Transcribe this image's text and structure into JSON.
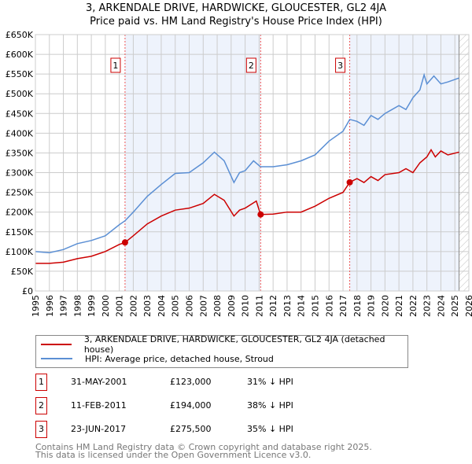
{
  "chart_data": {
    "type": "line",
    "title": "3, ARKENDALE DRIVE, HARDWICKE, GLOUCESTER, GL2 4JA",
    "subtitle": "Price paid vs. HM Land Registry's House Price Index (HPI)",
    "xlim": [
      1995,
      2026
    ],
    "ylim": [
      0,
      650000
    ],
    "xticks": [
      "1995",
      "1996",
      "1997",
      "1998",
      "1999",
      "2000",
      "2001",
      "2002",
      "2003",
      "2004",
      "2005",
      "2006",
      "2007",
      "2008",
      "2009",
      "2010",
      "2011",
      "2012",
      "2013",
      "2014",
      "2015",
      "2016",
      "2017",
      "2018",
      "2019",
      "2020",
      "2021",
      "2022",
      "2023",
      "2024",
      "2025",
      "2026"
    ],
    "yticks": [
      "£0",
      "£50K",
      "£100K",
      "£150K",
      "£200K",
      "£250K",
      "£300K",
      "£350K",
      "£400K",
      "£450K",
      "£500K",
      "£550K",
      "£600K",
      "£650K"
    ],
    "grid": true,
    "series": [
      {
        "name": "3, ARKENDALE DRIVE, HARDWICKE, GLOUCESTER, GL2 4JA (detached house)",
        "color": "#cc0000",
        "x": [
          1995,
          1996,
          1997,
          1998,
          1999,
          2000,
          2001,
          2001.41,
          2002,
          2003,
          2004,
          2005,
          2006,
          2007,
          2007.8,
          2008.5,
          2009.2,
          2009.6,
          2010,
          2010.8,
          2011.1,
          2012,
          2013,
          2014,
          2015,
          2016,
          2017,
          2017.48,
          2018,
          2018.5,
          2019,
          2019.5,
          2020,
          2021,
          2021.5,
          2022,
          2022.5,
          2023,
          2023.3,
          2023.6,
          2024,
          2024.5,
          2025.3
        ],
        "y": [
          70000,
          70000,
          73000,
          82000,
          88000,
          100000,
          118000,
          123000,
          140000,
          170000,
          190000,
          205000,
          210000,
          222000,
          245000,
          230000,
          190000,
          205000,
          210000,
          228000,
          194000,
          195000,
          200000,
          200000,
          215000,
          235000,
          250000,
          275500,
          285000,
          275000,
          290000,
          280000,
          295000,
          300000,
          310000,
          300000,
          325000,
          340000,
          358000,
          340000,
          355000,
          345000,
          352000
        ]
      },
      {
        "name": "HPI: Average price, detached house, Stroud",
        "color": "#5b8fd4",
        "x": [
          1995,
          1996,
          1997,
          1998,
          1999,
          2000,
          2001,
          2001.41,
          2002,
          2003,
          2004,
          2005,
          2006,
          2007,
          2007.8,
          2008.5,
          2009.2,
          2009.6,
          2010,
          2010.6,
          2011.1,
          2012,
          2013,
          2014,
          2015,
          2016,
          2017,
          2017.48,
          2018,
          2018.5,
          2019,
          2019.5,
          2020,
          2020.5,
          2021,
          2021.5,
          2022,
          2022.5,
          2022.8,
          2023,
          2023.5,
          2024,
          2024.5,
          2025.3
        ],
        "y": [
          100000,
          97000,
          105000,
          120000,
          128000,
          140000,
          168000,
          178000,
          200000,
          240000,
          270000,
          298000,
          300000,
          325000,
          352000,
          330000,
          275000,
          300000,
          305000,
          330000,
          315000,
          315000,
          320000,
          330000,
          345000,
          380000,
          405000,
          435000,
          430000,
          420000,
          445000,
          435000,
          450000,
          460000,
          470000,
          460000,
          490000,
          510000,
          548000,
          525000,
          545000,
          525000,
          530000,
          540000
        ]
      }
    ],
    "sales": [
      {
        "label": "1",
        "x": 2001.41,
        "y": 123000,
        "date": "31-MAY-2001",
        "price": "£123,000",
        "hpi": "31% ↓ HPI"
      },
      {
        "label": "2",
        "x": 2011.11,
        "y": 194000,
        "date": "11-FEB-2011",
        "price": "£194,000",
        "hpi": "38% ↓ HPI"
      },
      {
        "label": "3",
        "x": 2017.48,
        "y": 275500,
        "date": "23-JUN-2017",
        "price": "£275,500",
        "hpi": "35% ↓ HPI"
      }
    ],
    "forecast_start": 2025.3,
    "legend_position": "bottom"
  },
  "footer": {
    "line1": "Contains HM Land Registry data © Crown copyright and database right 2025.",
    "line2": "This data is licensed under the Open Government Licence v3.0."
  }
}
